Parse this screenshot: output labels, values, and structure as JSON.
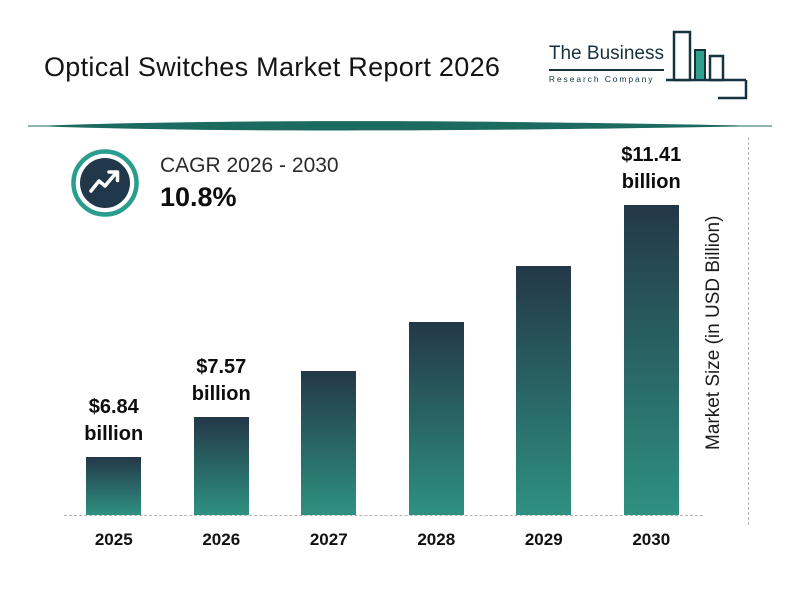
{
  "header": {
    "title": "Optical Switches Market Report 2026",
    "logo": {
      "line1": "The Business",
      "line2": "Research Company"
    }
  },
  "cagr": {
    "label": "CAGR 2026 - 2030",
    "value": "10.8%"
  },
  "icons": {
    "cagr_icon": "trending-up-arrow-in-circle",
    "logo_icon": "bar-chart-buildings"
  },
  "colors": {
    "accent_teal": "#2a9d8f",
    "divider_teal": "#1b6b60",
    "bar_gradient_top": "#243848",
    "bar_gradient_bottom": "#2e9181",
    "circle_fill": "#20384a",
    "logo_navy": "#16323f"
  },
  "chart_data": {
    "type": "bar",
    "title": "Optical Switches Market Report 2026",
    "categories": [
      "2025",
      "2026",
      "2027",
      "2028",
      "2029",
      "2030"
    ],
    "values": [
      6.84,
      7.57,
      8.39,
      9.29,
      10.3,
      11.41
    ],
    "value_labels": [
      "$6.84 billion",
      "$7.57 billion",
      "",
      "",
      "",
      "$11.41 billion"
    ],
    "xlabel": "",
    "ylabel": "Market Size (in USD Billion)",
    "ylim": [
      0,
      12
    ],
    "grid": "off",
    "baseline_style": "dashed",
    "legend": "none"
  }
}
